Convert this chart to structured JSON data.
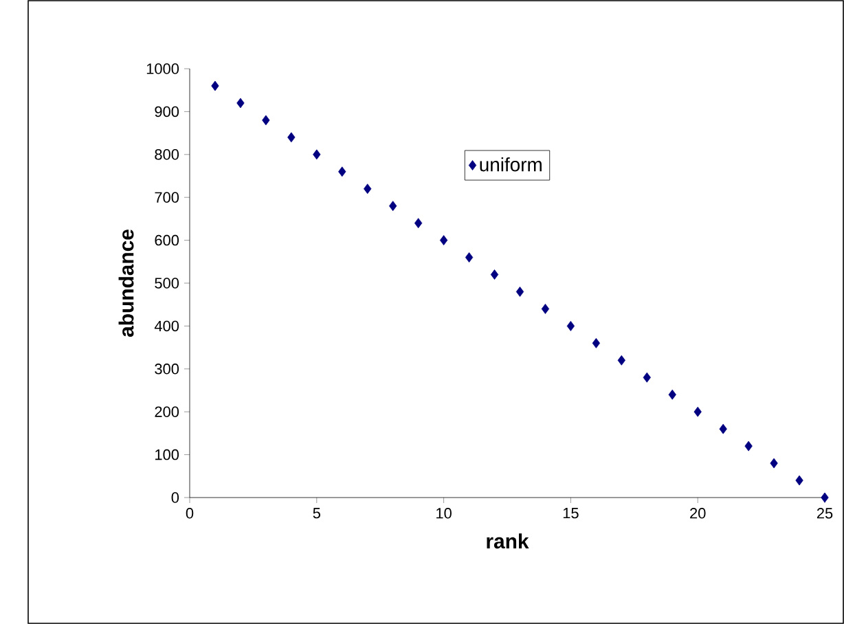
{
  "chart_data": {
    "type": "scatter",
    "xlabel": "rank",
    "ylabel": "abundance",
    "x": [
      1,
      2,
      3,
      4,
      5,
      6,
      7,
      8,
      9,
      10,
      11,
      12,
      13,
      14,
      15,
      16,
      17,
      18,
      19,
      20,
      21,
      22,
      23,
      24,
      25
    ],
    "series": [
      {
        "name": "uniform",
        "color": "#000080",
        "values": [
          960,
          920,
          880,
          840,
          800,
          760,
          720,
          680,
          640,
          600,
          560,
          520,
          480,
          440,
          400,
          360,
          320,
          280,
          240,
          200,
          160,
          120,
          80,
          40,
          0
        ]
      }
    ],
    "xlim": [
      0,
      25
    ],
    "ylim": [
      0,
      1000
    ],
    "xticks": [
      0,
      5,
      10,
      15,
      20,
      25
    ],
    "yticks": [
      0,
      100,
      200,
      300,
      400,
      500,
      600,
      700,
      800,
      900,
      1000
    ],
    "marker": "diamond",
    "legend": "top",
    "grid": false
  }
}
